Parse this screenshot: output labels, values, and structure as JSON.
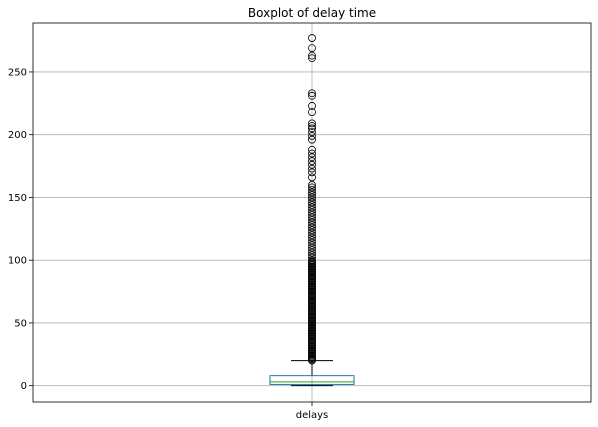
{
  "chart_data": {
    "type": "boxplot",
    "title": "Boxplot of delay time",
    "xlabel": "",
    "ylabel": "",
    "categories": [
      "delays"
    ],
    "ylim": [
      -13,
      289
    ],
    "yticks": [
      0,
      50,
      100,
      150,
      200,
      250
    ],
    "grid": true,
    "box": {
      "whisker_low": 0,
      "q1": 1,
      "median": 3,
      "q3": 8,
      "whisker_high": 20
    },
    "outliers": [
      20,
      21,
      22,
      23,
      24,
      25,
      26,
      27,
      28,
      29,
      30,
      31,
      32,
      33,
      34,
      35,
      36,
      37,
      38,
      39,
      40,
      41,
      42,
      43,
      44,
      45,
      46,
      47,
      48,
      49,
      50,
      51,
      52,
      53,
      54,
      55,
      56,
      57,
      58,
      59,
      60,
      61,
      62,
      63,
      64,
      65,
      66,
      67,
      68,
      69,
      70,
      71,
      72,
      73,
      74,
      75,
      76,
      77,
      78,
      79,
      80,
      81,
      82,
      83,
      84,
      85,
      86,
      87,
      88,
      89,
      90,
      91,
      92,
      93,
      94,
      95,
      96,
      97,
      98,
      99,
      100,
      102,
      104,
      106,
      108,
      110,
      112,
      114,
      116,
      118,
      120,
      122,
      124,
      126,
      128,
      130,
      132,
      134,
      136,
      138,
      140,
      142,
      144,
      146,
      148,
      150,
      152,
      154,
      156,
      158,
      160,
      166,
      170,
      173,
      176,
      179,
      182,
      185,
      188,
      196,
      199,
      202,
      205,
      207,
      209,
      218,
      223,
      231,
      233,
      261,
      263,
      269,
      277
    ],
    "colors": {
      "box": "#1f77b4",
      "median": "#2ca02c",
      "whisker": "#000000",
      "grid": "#b0b0b0"
    }
  }
}
